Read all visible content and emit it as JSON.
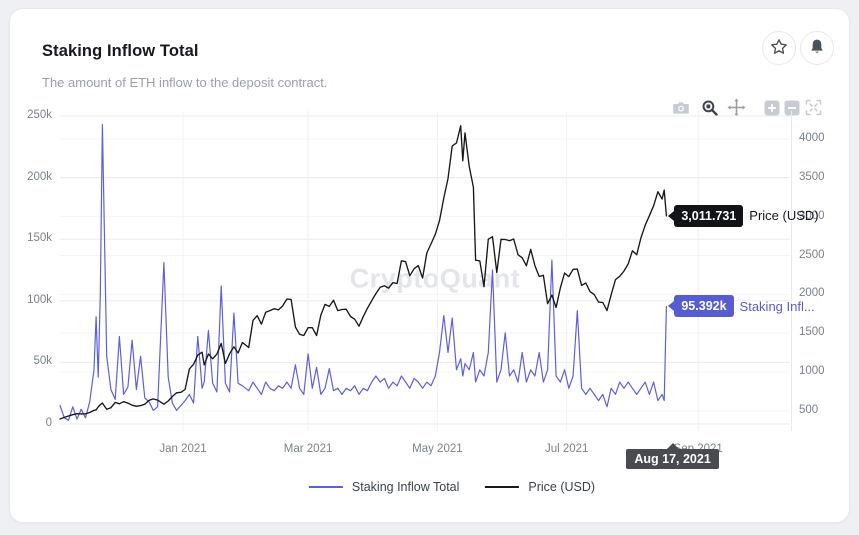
{
  "card": {
    "title": "Staking Inflow Total",
    "subtitle": "The amount of ETH inflow to the deposit contract.",
    "watermark": "CryptoQuant"
  },
  "colors": {
    "inflow_line": "#5e60d9",
    "price_line": "#17181c",
    "inflow_tooltip_bg": "#575dcf",
    "price_tooltip_bg": "#121317",
    "date_tooltip_bg": "#4a4b51",
    "grid_major": "#ebebef",
    "grid_minor": "#f4f4f7",
    "axis_text": "#7b818c"
  },
  "tooltips": {
    "price_value": "3,011.731",
    "price_label": "Price (USD)",
    "inflow_value": "95.392k",
    "inflow_label": "Staking Infl...",
    "date_label": "Aug 17, 2021"
  },
  "legend": [
    {
      "label": "Staking Inflow Total",
      "color": "#5e60d9"
    },
    {
      "label": "Price (USD)",
      "color": "#17181c"
    }
  ],
  "toolbar_icons": [
    "camera",
    "zoom-box",
    "pan",
    "zoom-in",
    "zoom-out",
    "fullscreen"
  ],
  "header_icons": [
    "star",
    "bell"
  ],
  "chart_data": {
    "type": "line",
    "title": "Staking Inflow Total",
    "grid": true,
    "legend_position": "bottom",
    "x_ticks": [
      {
        "label": "Jan 2021",
        "date": "2021-01-01"
      },
      {
        "label": "Mar 2021",
        "date": "2021-03-01"
      },
      {
        "label": "May 2021",
        "date": "2021-05-01"
      },
      {
        "label": "Jul 2021",
        "date": "2021-07-01"
      },
      {
        "label": "Sep 2021",
        "date": "2021-09-01"
      }
    ],
    "y_left_axis": {
      "series": "Staking Inflow Total",
      "range": [
        0,
        250000
      ],
      "ticks": [
        {
          "label": "0",
          "value": 0
        },
        {
          "label": "50k",
          "value": 50000
        },
        {
          "label": "100k",
          "value": 100000
        },
        {
          "label": "150k",
          "value": 150000
        },
        {
          "label": "200k",
          "value": 200000
        },
        {
          "label": "250k",
          "value": 250000
        }
      ]
    },
    "y_right_axis": {
      "series": "Price (USD)",
      "range": [
        500,
        4000
      ],
      "ticks": [
        {
          "label": "500",
          "value": 500
        },
        {
          "label": "1000",
          "value": 1000
        },
        {
          "label": "1500",
          "value": 1500
        },
        {
          "label": "2000",
          "value": 2000
        },
        {
          "label": "2500",
          "value": 2500
        },
        {
          "label": "3000",
          "value": 3000
        },
        {
          "label": "3500",
          "value": 3500
        },
        {
          "label": "4000",
          "value": 4000
        }
      ]
    },
    "series": [
      {
        "name": "Staking Inflow Total",
        "axis": "left",
        "color": "#5e60d9"
      },
      {
        "name": "Price (USD)",
        "axis": "right",
        "color": "#17181c"
      }
    ],
    "last_point": {
      "date": "2021-08-17",
      "inflow": 95392,
      "price": 3011.731
    },
    "points": [
      [
        "2020-11-04",
        15000,
        395
      ],
      [
        "2020-11-06",
        5000,
        415
      ],
      [
        "2020-11-08",
        3000,
        434
      ],
      [
        "2020-11-10",
        14000,
        450
      ],
      [
        "2020-11-12",
        4000,
        463
      ],
      [
        "2020-11-14",
        12000,
        460
      ],
      [
        "2020-11-16",
        5000,
        462
      ],
      [
        "2020-11-18",
        18000,
        478
      ],
      [
        "2020-11-20",
        44000,
        505
      ],
      [
        "2020-11-21",
        87000,
        513
      ],
      [
        "2020-11-22",
        38000,
        550
      ],
      [
        "2020-11-23",
        105000,
        580
      ],
      [
        "2020-11-24",
        243000,
        600
      ],
      [
        "2020-11-26",
        55000,
        520
      ],
      [
        "2020-11-28",
        28000,
        540
      ],
      [
        "2020-11-30",
        20000,
        608
      ],
      [
        "2020-12-02",
        71000,
        590
      ],
      [
        "2020-12-04",
        24000,
        618
      ],
      [
        "2020-12-06",
        30000,
        600
      ],
      [
        "2020-12-08",
        68000,
        573
      ],
      [
        "2020-12-10",
        28000,
        558
      ],
      [
        "2020-12-12",
        55000,
        568
      ],
      [
        "2020-12-14",
        21000,
        586
      ],
      [
        "2020-12-16",
        18000,
        636
      ],
      [
        "2020-12-18",
        11000,
        654
      ],
      [
        "2020-12-20",
        14000,
        638
      ],
      [
        "2020-12-23",
        131000,
        585
      ],
      [
        "2020-12-25",
        38000,
        626
      ],
      [
        "2020-12-27",
        17000,
        685
      ],
      [
        "2020-12-29",
        11000,
        732
      ],
      [
        "2020-12-31",
        15000,
        738
      ],
      [
        "2021-01-02",
        19000,
        775
      ],
      [
        "2021-01-04",
        24000,
        1040
      ],
      [
        "2021-01-06",
        17000,
        1100
      ],
      [
        "2021-01-08",
        71000,
        1217
      ],
      [
        "2021-01-10",
        29000,
        1255
      ],
      [
        "2021-01-11",
        34000,
        1090
      ],
      [
        "2021-01-13",
        76000,
        1232
      ],
      [
        "2021-01-15",
        33000,
        1170
      ],
      [
        "2021-01-17",
        26000,
        1230
      ],
      [
        "2021-01-19",
        112000,
        1368
      ],
      [
        "2021-01-21",
        33000,
        1110
      ],
      [
        "2021-01-23",
        26000,
        1235
      ],
      [
        "2021-01-25",
        90000,
        1325
      ],
      [
        "2021-01-27",
        33000,
        1245
      ],
      [
        "2021-01-29",
        31000,
        1380
      ],
      [
        "2021-02-01",
        27000,
        1315
      ],
      [
        "2021-02-03",
        34000,
        1665
      ],
      [
        "2021-02-05",
        29000,
        1725
      ],
      [
        "2021-02-07",
        24000,
        1615
      ],
      [
        "2021-02-09",
        34000,
        1770
      ],
      [
        "2021-02-11",
        29000,
        1790
      ],
      [
        "2021-02-13",
        27000,
        1815
      ],
      [
        "2021-02-15",
        31000,
        1800
      ],
      [
        "2021-02-17",
        29000,
        1850
      ],
      [
        "2021-02-19",
        34000,
        1940
      ],
      [
        "2021-02-21",
        29000,
        1935
      ],
      [
        "2021-02-23",
        48000,
        1580
      ],
      [
        "2021-02-25",
        29000,
        1485
      ],
      [
        "2021-02-27",
        24000,
        1470
      ],
      [
        "2021-03-01",
        57000,
        1570
      ],
      [
        "2021-03-03",
        29000,
        1570
      ],
      [
        "2021-03-05",
        46000,
        1470
      ],
      [
        "2021-03-07",
        24000,
        1730
      ],
      [
        "2021-03-09",
        29000,
        1870
      ],
      [
        "2021-03-11",
        45000,
        1845
      ],
      [
        "2021-03-13",
        27000,
        1925
      ],
      [
        "2021-03-15",
        29000,
        1790
      ],
      [
        "2021-03-17",
        24000,
        1805
      ],
      [
        "2021-03-19",
        29000,
        1808
      ],
      [
        "2021-03-21",
        27000,
        1715
      ],
      [
        "2021-03-23",
        31000,
        1680
      ],
      [
        "2021-03-25",
        24000,
        1590
      ],
      [
        "2021-03-27",
        29000,
        1712
      ],
      [
        "2021-03-29",
        27000,
        1820
      ],
      [
        "2021-03-31",
        34000,
        1918
      ],
      [
        "2021-04-02",
        39000,
        2010
      ],
      [
        "2021-04-04",
        34000,
        2090
      ],
      [
        "2021-04-06",
        37000,
        2110
      ],
      [
        "2021-04-08",
        29000,
        2080
      ],
      [
        "2021-04-10",
        34000,
        2150
      ],
      [
        "2021-04-12",
        31000,
        2140
      ],
      [
        "2021-04-14",
        39000,
        2432
      ],
      [
        "2021-04-16",
        34000,
        2420
      ],
      [
        "2021-04-18",
        29000,
        2240
      ],
      [
        "2021-04-20",
        37000,
        2330
      ],
      [
        "2021-04-22",
        34000,
        2370
      ],
      [
        "2021-04-24",
        29000,
        2210
      ],
      [
        "2021-04-26",
        34000,
        2532
      ],
      [
        "2021-04-28",
        31000,
        2650
      ],
      [
        "2021-04-30",
        39000,
        2772
      ],
      [
        "2021-05-02",
        58000,
        2950
      ],
      [
        "2021-05-04",
        88000,
        3240
      ],
      [
        "2021-05-06",
        58000,
        3490
      ],
      [
        "2021-05-08",
        86000,
        3910
      ],
      [
        "2021-05-10",
        44000,
        3950
      ],
      [
        "2021-05-12",
        53000,
        4170
      ],
      [
        "2021-05-13",
        39000,
        3720
      ],
      [
        "2021-05-14",
        49000,
        4078
      ],
      [
        "2021-05-16",
        44000,
        3650
      ],
      [
        "2021-05-18",
        58000,
        3380
      ],
      [
        "2021-05-19",
        34000,
        2440
      ],
      [
        "2021-05-21",
        44000,
        2430
      ],
      [
        "2021-05-23",
        39000,
        2100
      ],
      [
        "2021-05-25",
        58000,
        2710
      ],
      [
        "2021-05-27",
        125000,
        2742
      ],
      [
        "2021-05-29",
        34000,
        2280
      ],
      [
        "2021-05-31",
        44000,
        2708
      ],
      [
        "2021-06-02",
        74000,
        2706
      ],
      [
        "2021-06-04",
        39000,
        2690
      ],
      [
        "2021-06-06",
        44000,
        2712
      ],
      [
        "2021-06-08",
        34000,
        2510
      ],
      [
        "2021-06-10",
        58000,
        2470
      ],
      [
        "2021-06-12",
        34000,
        2368
      ],
      [
        "2021-06-14",
        44000,
        2580
      ],
      [
        "2021-06-16",
        39000,
        2370
      ],
      [
        "2021-06-18",
        58000,
        2230
      ],
      [
        "2021-06-20",
        34000,
        2245
      ],
      [
        "2021-06-22",
        44000,
        1880
      ],
      [
        "2021-06-24",
        133000,
        1990
      ],
      [
        "2021-06-26",
        39000,
        1830
      ],
      [
        "2021-06-28",
        34000,
        2085
      ],
      [
        "2021-06-30",
        44000,
        2275
      ],
      [
        "2021-07-02",
        29000,
        2228
      ],
      [
        "2021-07-04",
        39000,
        2322
      ],
      [
        "2021-07-06",
        92000,
        2325
      ],
      [
        "2021-07-08",
        29000,
        2115
      ],
      [
        "2021-07-10",
        24000,
        2146
      ],
      [
        "2021-07-12",
        29000,
        2035
      ],
      [
        "2021-07-14",
        24000,
        1995
      ],
      [
        "2021-07-16",
        19000,
        1900
      ],
      [
        "2021-07-18",
        24000,
        1895
      ],
      [
        "2021-07-20",
        14000,
        1790
      ],
      [
        "2021-07-22",
        29000,
        1996
      ],
      [
        "2021-07-24",
        24000,
        2190
      ],
      [
        "2021-07-26",
        34000,
        2232
      ],
      [
        "2021-07-28",
        29000,
        2300
      ],
      [
        "2021-07-30",
        34000,
        2392
      ],
      [
        "2021-08-01",
        29000,
        2560
      ],
      [
        "2021-08-03",
        24000,
        2510
      ],
      [
        "2021-08-05",
        29000,
        2725
      ],
      [
        "2021-08-07",
        34000,
        2890
      ],
      [
        "2021-08-09",
        24000,
        3012
      ],
      [
        "2021-08-11",
        34000,
        3140
      ],
      [
        "2021-08-13",
        19000,
        3322
      ],
      [
        "2021-08-15",
        24000,
        3228
      ],
      [
        "2021-08-16",
        19000,
        3343
      ],
      [
        "2021-08-17",
        95392,
        3011.731
      ]
    ]
  }
}
